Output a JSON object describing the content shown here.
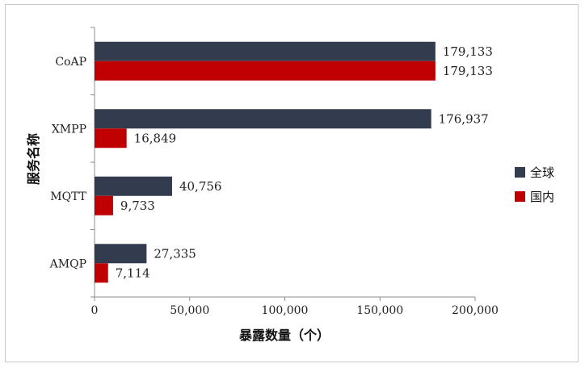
{
  "chart_data": {
    "type": "bar",
    "orientation": "horizontal",
    "categories": [
      "CoAP",
      "XMPP",
      "MQTT",
      "AMQP"
    ],
    "series": [
      {
        "name": "全球",
        "color": "#323c4e",
        "values": [
          179133,
          176937,
          40756,
          27335
        ],
        "labels": [
          "179,133",
          "176,937",
          "40,756",
          "27,335"
        ]
      },
      {
        "name": "国内",
        "color": "#c00000",
        "values": [
          179133,
          16849,
          9733,
          7114
        ],
        "labels": [
          "179,133",
          "16,849",
          "9,733",
          "7,114"
        ]
      }
    ],
    "xlabel": "暴露数量（个）",
    "ylabel": "服务名称",
    "xlim": [
      0,
      200000
    ],
    "xticks": [
      0,
      50000,
      100000,
      150000,
      200000
    ],
    "xtick_labels": [
      "0",
      "50,000",
      "100,000",
      "150,000",
      "200,000"
    ],
    "grid": false,
    "legend_position": "right"
  }
}
